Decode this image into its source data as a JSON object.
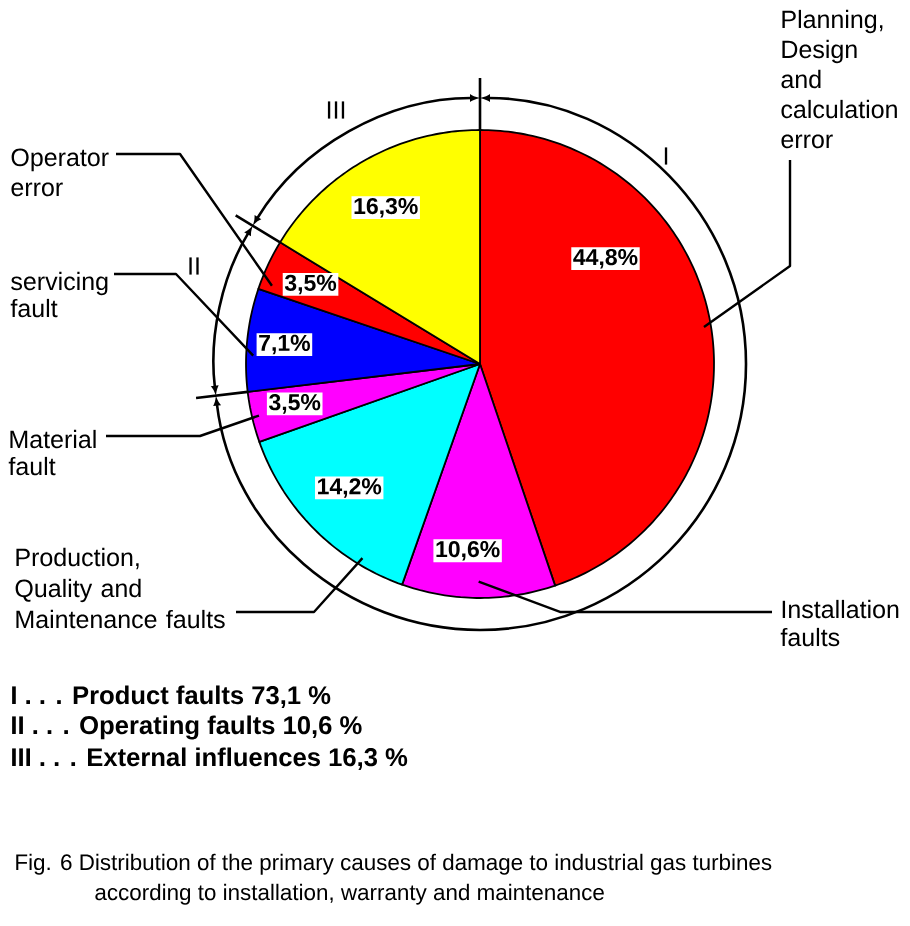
{
  "chart_data": {
    "type": "pie",
    "categories": [
      "Planning, Design and calculation error",
      "Installation faults",
      "Production, Quality and Maintenance faults",
      "Material fault",
      "servicing fault",
      "Operator error",
      null
    ],
    "values": [
      44.8,
      10.6,
      14.2,
      3.5,
      7.1,
      3.5,
      16.3
    ],
    "colors": [
      "#ff0000",
      "#ff00ff",
      "#00ffff",
      "#ff00ff",
      "#0000ff",
      "#ff0000",
      "#ffff00"
    ],
    "value_labels": [
      "44,8%",
      "10,6%",
      "14,2%",
      "3,5%",
      "7,1%",
      "3,5%",
      "16,3%"
    ],
    "annotations": [
      "I",
      "II",
      "III",
      "I . . . Product faults 73,1 %",
      "II . . . Operating faults 10,6 %",
      "III . . . External influences 16,3 %",
      "Fig. 6 Distribution of the primary causes of damage to industrial gas turbines",
      "according to installation, warranty and maintenance"
    ]
  }
}
